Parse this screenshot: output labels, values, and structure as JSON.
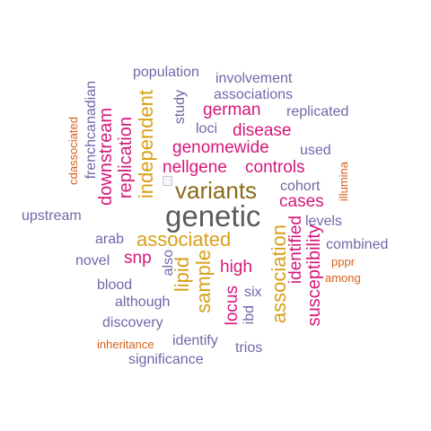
{
  "colors": {
    "gray": "#5b5b5b",
    "purple": "#7068a8",
    "magenta": "#d4187a",
    "gold": "#d7a018",
    "brown": "#8a6a1c",
    "orange": "#d5601a"
  },
  "words": [
    {
      "text": "genetic",
      "color": "gray",
      "vertical": false
    },
    {
      "text": "variants",
      "color": "brown",
      "vertical": false
    },
    {
      "text": "associated",
      "color": "gold",
      "vertical": false
    },
    {
      "text": "independent",
      "color": "gold",
      "vertical": true
    },
    {
      "text": "association",
      "color": "gold",
      "vertical": true
    },
    {
      "text": "sample",
      "color": "gold",
      "vertical": true
    },
    {
      "text": "lipid",
      "color": "gold",
      "vertical": true
    },
    {
      "text": "replication",
      "color": "magenta",
      "vertical": true
    },
    {
      "text": "downstream",
      "color": "magenta",
      "vertical": true
    },
    {
      "text": "susceptibility",
      "color": "magenta",
      "vertical": true
    },
    {
      "text": "identified",
      "color": "magenta",
      "vertical": true
    },
    {
      "text": "genomewide",
      "color": "magenta",
      "vertical": false
    },
    {
      "text": "nellgene",
      "color": "magenta",
      "vertical": false
    },
    {
      "text": "controls",
      "color": "magenta",
      "vertical": false
    },
    {
      "text": "disease",
      "color": "magenta",
      "vertical": false
    },
    {
      "text": "german",
      "color": "magenta",
      "vertical": false
    },
    {
      "text": "cases",
      "color": "magenta",
      "vertical": false
    },
    {
      "text": "snp",
      "color": "magenta",
      "vertical": false
    },
    {
      "text": "high",
      "color": "magenta",
      "vertical": false
    },
    {
      "text": "locus",
      "color": "magenta",
      "vertical": true
    },
    {
      "text": "population",
      "color": "purple",
      "vertical": false
    },
    {
      "text": "involvement",
      "color": "purple",
      "vertical": false
    },
    {
      "text": "associations",
      "color": "purple",
      "vertical": false
    },
    {
      "text": "replicated",
      "color": "purple",
      "vertical": false
    },
    {
      "text": "study",
      "color": "purple",
      "vertical": true
    },
    {
      "text": "loci",
      "color": "purple",
      "vertical": false
    },
    {
      "text": "used",
      "color": "purple",
      "vertical": false
    },
    {
      "text": "cohort",
      "color": "purple",
      "vertical": false
    },
    {
      "text": "levels",
      "color": "purple",
      "vertical": false
    },
    {
      "text": "upstream",
      "color": "purple",
      "vertical": false
    },
    {
      "text": "frenchcanadian",
      "color": "purple",
      "vertical": true
    },
    {
      "text": "arab",
      "color": "purple",
      "vertical": false
    },
    {
      "text": "combined",
      "color": "purple",
      "vertical": false
    },
    {
      "text": "novel",
      "color": "purple",
      "vertical": false
    },
    {
      "text": "also",
      "color": "purple",
      "vertical": true
    },
    {
      "text": "blood",
      "color": "purple",
      "vertical": false
    },
    {
      "text": "six",
      "color": "purple",
      "vertical": false
    },
    {
      "text": "although",
      "color": "purple",
      "vertical": false
    },
    {
      "text": "ibd",
      "color": "purple",
      "vertical": true
    },
    {
      "text": "discovery",
      "color": "purple",
      "vertical": false
    },
    {
      "text": "identify",
      "color": "purple",
      "vertical": false
    },
    {
      "text": "trios",
      "color": "purple",
      "vertical": false
    },
    {
      "text": "significance",
      "color": "purple",
      "vertical": false
    },
    {
      "text": "cdassociated",
      "color": "orange",
      "vertical": true
    },
    {
      "text": "illumina",
      "color": "orange",
      "vertical": true
    },
    {
      "text": "pppr",
      "color": "orange",
      "vertical": false
    },
    {
      "text": "among",
      "color": "orange",
      "vertical": false
    },
    {
      "text": "inheritance",
      "color": "orange",
      "vertical": false
    }
  ]
}
